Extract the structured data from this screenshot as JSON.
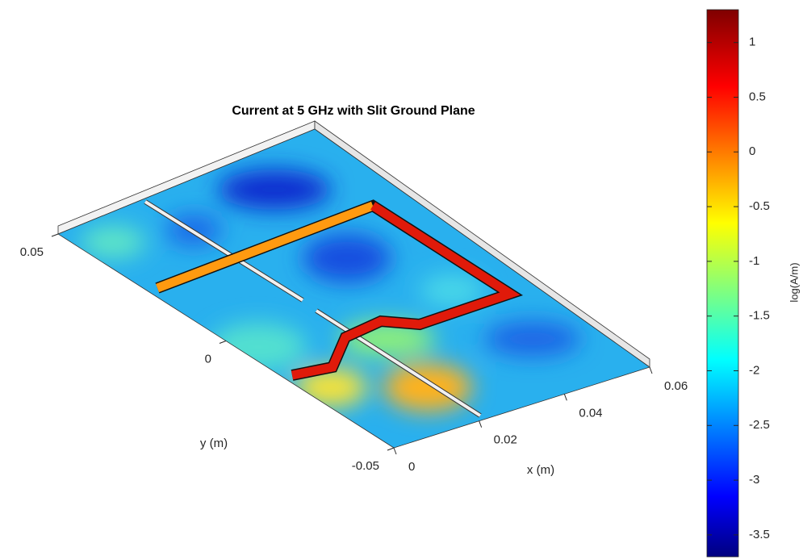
{
  "chart_data": {
    "type": "surface",
    "title": "Current at 5 GHz with Slit Ground Plane",
    "xlabel": "x (m)",
    "ylabel": "y (m)",
    "xlim": [
      0,
      0.06
    ],
    "xticks": [
      0,
      0.02,
      0.04,
      0.06
    ],
    "ylim": [
      -0.05,
      0.05
    ],
    "yticks": [
      -0.05,
      0,
      0.05
    ],
    "colormap": "jet",
    "colorbar_label": "log(A/m)",
    "clim": [
      -3.7,
      1.3
    ],
    "cticks": [
      -3.5,
      -3,
      -2.5,
      -2,
      -1.5,
      -1,
      -0.5,
      0,
      0.5,
      1
    ]
  }
}
